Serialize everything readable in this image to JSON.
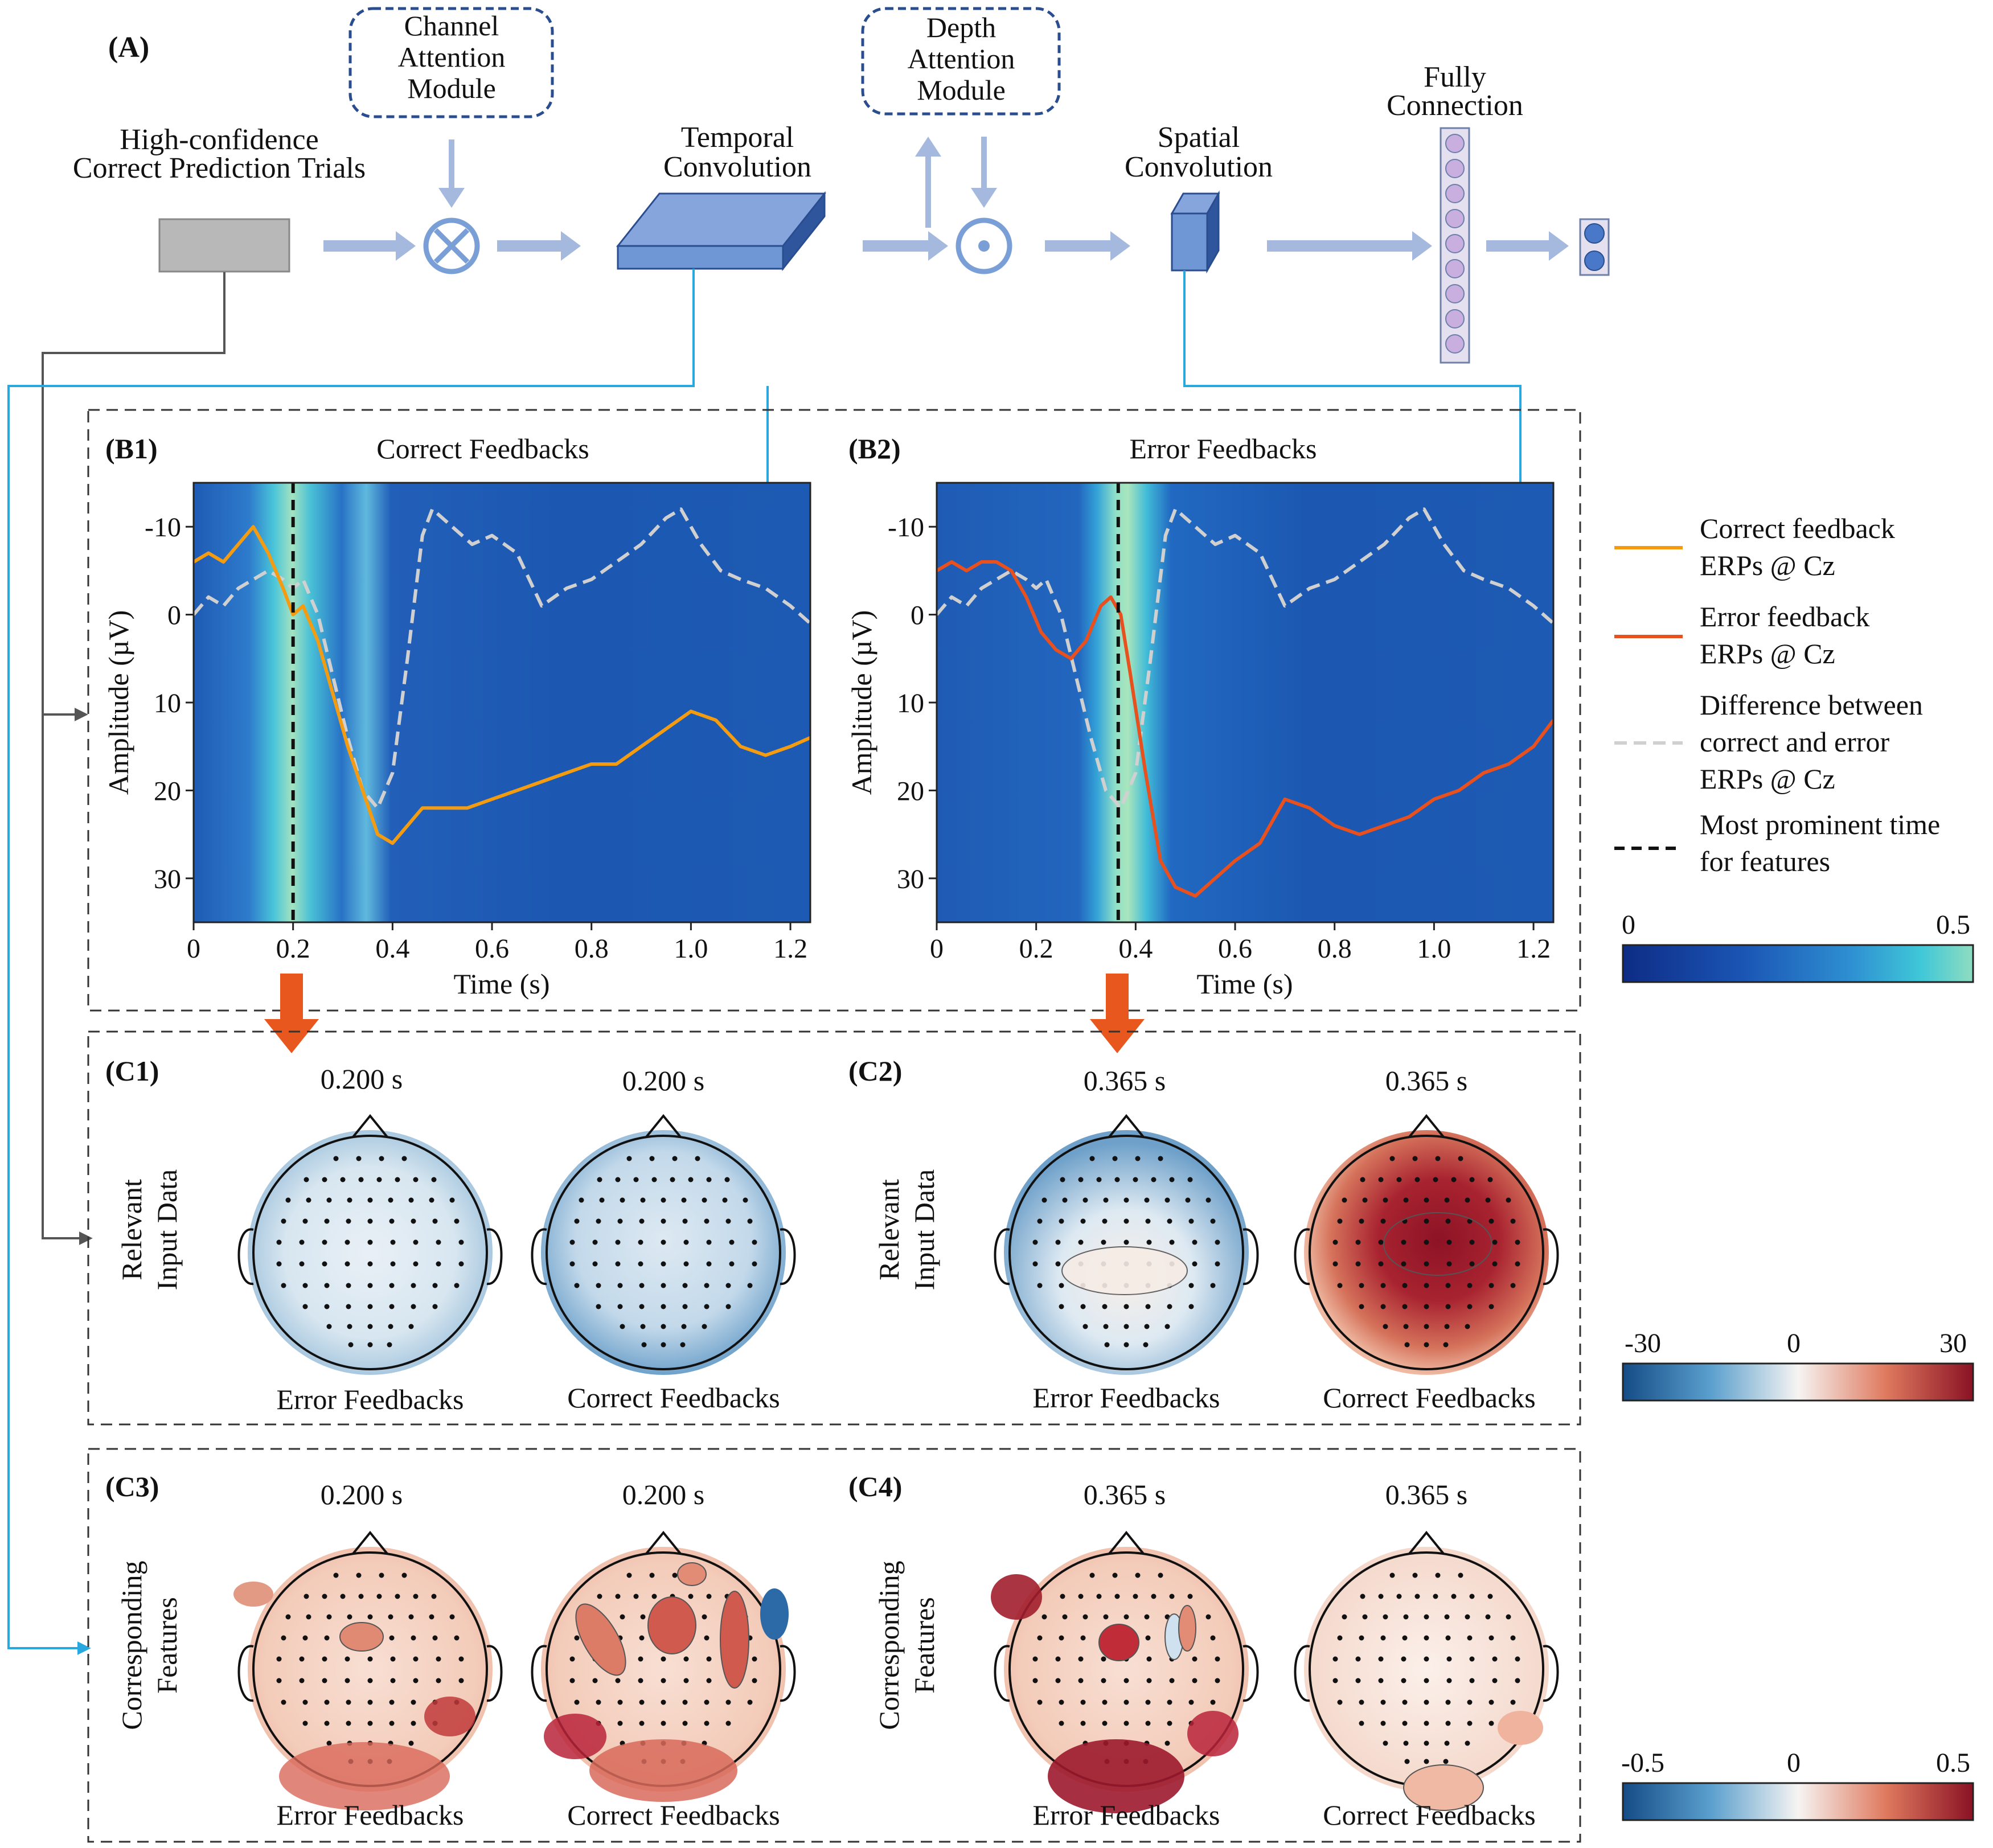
{
  "panel_a": {
    "label": "(A)",
    "input_title_line1": "High-confidence",
    "input_title_line2": "Correct Prediction Trials",
    "channel_attention_line1": "Channel",
    "channel_attention_line2": "Attention",
    "channel_attention_line3": "Module",
    "temporal_conv_line1": "Temporal",
    "temporal_conv_line2": "Convolution",
    "depth_attention_line1": "Depth",
    "depth_attention_line2": "Attention",
    "depth_attention_line3": "Module",
    "spatial_conv_line1": "Spatial",
    "spatial_conv_line2": "Convolution",
    "fully_conn_line1": "Fully",
    "fully_conn_line2": "Connection"
  },
  "panel_b": {
    "b1_label": "(B1)",
    "b1_title": "Correct Feedbacks",
    "b2_label": "(B2)",
    "b2_title": "Error Feedbacks",
    "ylabel": "Amplitude (µV)",
    "xlabel": "Time (s)",
    "yticks": [
      "-10",
      "0",
      "10",
      "20",
      "30"
    ],
    "xticks": [
      "0",
      "0.2",
      "0.4",
      "0.6",
      "0.8",
      "1.0",
      "1.2"
    ]
  },
  "legend": {
    "correct_line1": "Correct feedback",
    "correct_line2": "ERPs @ Cz",
    "error_line1": "Error feedback",
    "error_line2": "ERPs @ Cz",
    "diff_line1": "Difference between",
    "diff_line2": "correct and error",
    "diff_line3": "ERPs @ Cz",
    "prominent_line1": "Most prominent time",
    "prominent_line2": "for features"
  },
  "colorbars": {
    "attention_min": "0",
    "attention_max": "0.5",
    "input_min": "-30",
    "input_mid": "0",
    "input_max": "30",
    "feature_min": "-0.5",
    "feature_mid": "0",
    "feature_max": "0.5"
  },
  "panel_c": {
    "c1_label": "(C1)",
    "c2_label": "(C2)",
    "c3_label": "(C3)",
    "c4_label": "(C4)",
    "row1_ylabel_line1": "Relevant",
    "row1_ylabel_line2": "Input Data",
    "row2_ylabel_line1": "Corresponding",
    "row2_ylabel_line2": "Features",
    "time_c1": "0.200 s",
    "time_c2": "0.365 s",
    "error_feedbacks": "Error Feedbacks",
    "correct_feedbacks": "Correct Feedbacks"
  },
  "colors": {
    "correct_erp": "#f39c12",
    "error_erp": "#e8501e",
    "difference": "#d0d0d0",
    "link_blue": "#29a8e0",
    "arrow_orange": "#e8581e",
    "block_blue": "#7a9fd6"
  },
  "chart_data": [
    {
      "type": "line",
      "title": "Correct Feedbacks",
      "xlabel": "Time (s)",
      "ylabel": "Amplitude (µV)",
      "xlim": [
        0,
        1.24
      ],
      "ylim": [
        -15,
        35
      ],
      "y_inverted": true,
      "prominent_time": 0.2,
      "series": [
        {
          "name": "Correct feedback ERPs @ Cz",
          "x": [
            0,
            0.03,
            0.06,
            0.09,
            0.12,
            0.15,
            0.18,
            0.2,
            0.22,
            0.25,
            0.28,
            0.31,
            0.34,
            0.37,
            0.4,
            0.43,
            0.46,
            0.5,
            0.55,
            0.6,
            0.65,
            0.7,
            0.75,
            0.8,
            0.85,
            0.9,
            0.95,
            1.0,
            1.05,
            1.1,
            1.15,
            1.2,
            1.24
          ],
          "values": [
            -6,
            -7,
            -6,
            -8,
            -10,
            -7,
            -3,
            0,
            -1,
            3,
            9,
            15,
            20,
            25,
            26,
            24,
            22,
            22,
            22,
            21,
            20,
            19,
            18,
            17,
            17,
            15,
            13,
            11,
            12,
            15,
            16,
            15,
            14
          ]
        },
        {
          "name": "Difference between correct and error ERPs @ Cz",
          "x": [
            0,
            0.03,
            0.06,
            0.09,
            0.12,
            0.15,
            0.18,
            0.2,
            0.22,
            0.25,
            0.28,
            0.31,
            0.34,
            0.37,
            0.4,
            0.43,
            0.46,
            0.48,
            0.52,
            0.56,
            0.6,
            0.65,
            0.7,
            0.75,
            0.8,
            0.85,
            0.9,
            0.95,
            0.98,
            1.02,
            1.06,
            1.1,
            1.15,
            1.2,
            1.24
          ],
          "values": [
            0,
            -2,
            -1,
            -3,
            -4,
            -5,
            -4,
            -3,
            -4,
            0,
            7,
            14,
            20,
            22,
            18,
            5,
            -9,
            -12,
            -10,
            -8,
            -9,
            -7,
            -1,
            -3,
            -4,
            -6,
            -8,
            -11,
            -12,
            -8,
            -5,
            -4,
            -3,
            -1,
            1
          ]
        }
      ]
    },
    {
      "type": "line",
      "title": "Error Feedbacks",
      "xlabel": "Time (s)",
      "ylabel": "Amplitude (µV)",
      "xlim": [
        0,
        1.24
      ],
      "ylim": [
        -15,
        35
      ],
      "y_inverted": true,
      "prominent_time": 0.365,
      "series": [
        {
          "name": "Error feedback ERPs @ Cz",
          "x": [
            0,
            0.03,
            0.06,
            0.09,
            0.12,
            0.15,
            0.18,
            0.21,
            0.24,
            0.27,
            0.3,
            0.33,
            0.35,
            0.37,
            0.39,
            0.42,
            0.45,
            0.48,
            0.52,
            0.56,
            0.6,
            0.65,
            0.7,
            0.75,
            0.8,
            0.85,
            0.9,
            0.95,
            1.0,
            1.05,
            1.1,
            1.15,
            1.2,
            1.24
          ],
          "values": [
            -5,
            -6,
            -5,
            -6,
            -6,
            -5,
            -2,
            2,
            4,
            5,
            3,
            -1,
            -2,
            0,
            7,
            18,
            28,
            31,
            32,
            30,
            28,
            26,
            21,
            22,
            24,
            25,
            24,
            23,
            21,
            20,
            18,
            17,
            15,
            12
          ]
        },
        {
          "name": "Difference between correct and error ERPs @ Cz",
          "x": [
            0,
            0.03,
            0.06,
            0.09,
            0.12,
            0.15,
            0.18,
            0.2,
            0.22,
            0.25,
            0.28,
            0.31,
            0.34,
            0.37,
            0.4,
            0.43,
            0.46,
            0.48,
            0.52,
            0.56,
            0.6,
            0.65,
            0.7,
            0.75,
            0.8,
            0.85,
            0.9,
            0.95,
            0.98,
            1.02,
            1.06,
            1.1,
            1.15,
            1.2,
            1.24
          ],
          "values": [
            0,
            -2,
            -1,
            -3,
            -4,
            -5,
            -4,
            -3,
            -4,
            0,
            7,
            14,
            20,
            22,
            18,
            5,
            -9,
            -12,
            -10,
            -8,
            -9,
            -7,
            -1,
            -3,
            -4,
            -6,
            -8,
            -11,
            -12,
            -8,
            -5,
            -4,
            -3,
            -1,
            1
          ]
        }
      ]
    }
  ]
}
